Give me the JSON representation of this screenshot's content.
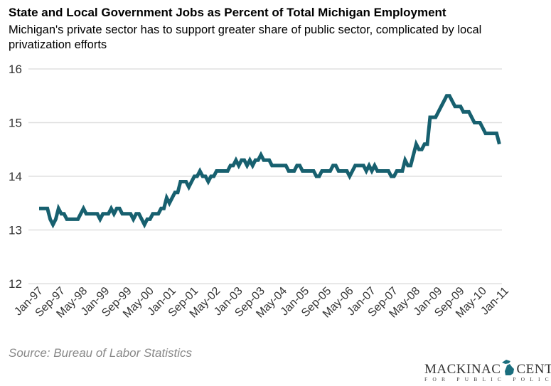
{
  "chart_data": {
    "type": "line",
    "title": "State and Local Government Jobs as Percent of Total Michigan Employment",
    "subtitle": "Michigan's private sector has to support greater share of public sector, complicated by local privatization efforts",
    "xlabel": "",
    "ylabel": "",
    "ylim": [
      12,
      16
    ],
    "yticks": [
      "12",
      "13",
      "14",
      "15",
      "16"
    ],
    "xticks": [
      "Jan-97",
      "Sep-97",
      "May-98",
      "Jan-99",
      "Sep-99",
      "May-00",
      "Jan-01",
      "Sep-01",
      "May-02",
      "Jan-03",
      "Sep-03",
      "May-04",
      "Jan-05",
      "Sep-05",
      "May-06",
      "Jan-07",
      "Sep-07",
      "May-08",
      "Jan-09",
      "Sep-09",
      "May-10",
      "Jan-11"
    ],
    "x_start": "Jan-97",
    "x_frequency": "monthly",
    "grid": true,
    "line_color": "#17606f",
    "values": [
      13.4,
      13.4,
      13.4,
      13.4,
      13.2,
      13.1,
      13.2,
      13.4,
      13.3,
      13.3,
      13.2,
      13.2,
      13.2,
      13.2,
      13.2,
      13.3,
      13.4,
      13.3,
      13.3,
      13.3,
      13.3,
      13.3,
      13.2,
      13.3,
      13.3,
      13.3,
      13.4,
      13.3,
      13.4,
      13.4,
      13.3,
      13.3,
      13.3,
      13.3,
      13.2,
      13.3,
      13.3,
      13.2,
      13.1,
      13.2,
      13.2,
      13.3,
      13.3,
      13.3,
      13.4,
      13.4,
      13.6,
      13.5,
      13.6,
      13.7,
      13.7,
      13.9,
      13.9,
      13.9,
      13.8,
      13.9,
      14.0,
      14.0,
      14.1,
      14.0,
      14.0,
      13.9,
      14.0,
      14.0,
      14.1,
      14.1,
      14.1,
      14.1,
      14.1,
      14.2,
      14.2,
      14.3,
      14.2,
      14.3,
      14.3,
      14.2,
      14.3,
      14.2,
      14.3,
      14.3,
      14.4,
      14.3,
      14.3,
      14.3,
      14.2,
      14.2,
      14.2,
      14.2,
      14.2,
      14.2,
      14.1,
      14.1,
      14.1,
      14.2,
      14.2,
      14.1,
      14.1,
      14.1,
      14.1,
      14.1,
      14.0,
      14.0,
      14.1,
      14.1,
      14.1,
      14.1,
      14.2,
      14.2,
      14.1,
      14.1,
      14.1,
      14.1,
      14.0,
      14.1,
      14.2,
      14.2,
      14.2,
      14.2,
      14.1,
      14.2,
      14.1,
      14.2,
      14.1,
      14.1,
      14.1,
      14.1,
      14.1,
      14.0,
      14.0,
      14.1,
      14.1,
      14.1,
      14.3,
      14.2,
      14.2,
      14.4,
      14.6,
      14.5,
      14.5,
      14.6,
      14.6,
      15.1,
      15.1,
      15.1,
      15.2,
      15.3,
      15.4,
      15.5,
      15.5,
      15.4,
      15.3,
      15.3,
      15.3,
      15.2,
      15.2,
      15.2,
      15.1,
      15.0,
      15.0,
      15.0,
      14.9,
      14.8,
      14.8,
      14.8,
      14.8,
      14.8,
      14.6
    ]
  },
  "source": "Source: Bureau of Labor Statistics",
  "logo": {
    "name": "MACKINAC CENTER",
    "left": "MACKINAC",
    "right": "CENTER",
    "tagline": "FOR PUBLIC POLICY",
    "color": "#1a6e7e"
  }
}
